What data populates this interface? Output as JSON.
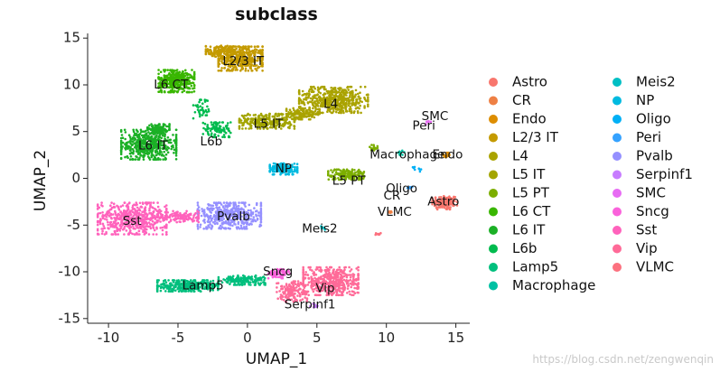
{
  "chart_data": {
    "type": "scatter",
    "title": "subclass",
    "xlabel": "UMAP_1",
    "ylabel": "UMAP_2",
    "xlim": [
      -11.5,
      16
    ],
    "ylim": [
      -15.5,
      15.5
    ],
    "xticks": [
      -10,
      -5,
      0,
      5,
      10,
      15
    ],
    "yticks": [
      -15,
      -10,
      -5,
      0,
      5,
      10,
      15
    ],
    "grid": false,
    "legend_position": "right",
    "series": [
      {
        "name": "Astro",
        "color": "#F8766D",
        "clusters": [
          {
            "x": 14.2,
            "y": -2.6,
            "rx": 0.9,
            "ry": 0.75,
            "n": 150
          }
        ]
      },
      {
        "name": "CR",
        "color": "#EE8044",
        "clusters": [
          {
            "x": 10.3,
            "y": -3.6,
            "rx": 0.15,
            "ry": 0.15,
            "n": 6
          }
        ]
      },
      {
        "name": "Endo",
        "color": "#DD8D00",
        "clusters": [
          {
            "x": 14.3,
            "y": 2.5,
            "rx": 0.3,
            "ry": 0.3,
            "n": 15
          }
        ]
      },
      {
        "name": "L2/3 IT",
        "color": "#C49A00",
        "clusters": [
          {
            "x": -0.5,
            "y": 12.8,
            "rx": 1.6,
            "ry": 1.3,
            "n": 400
          },
          {
            "x": -2.0,
            "y": 13.6,
            "rx": 1.0,
            "ry": 0.6,
            "n": 120
          }
        ]
      },
      {
        "name": "L4",
        "color": "#AAA300",
        "clusters": [
          {
            "x": 6.2,
            "y": 8.4,
            "rx": 2.5,
            "ry": 1.4,
            "n": 520
          },
          {
            "x": 4.0,
            "y": 6.9,
            "rx": 1.2,
            "ry": 0.6,
            "n": 140
          }
        ]
      },
      {
        "name": "L5 IT",
        "color": "#A3A500",
        "clusters": [
          {
            "x": 1.4,
            "y": 6.1,
            "rx": 2.0,
            "ry": 0.8,
            "n": 300
          }
        ]
      },
      {
        "name": "L5 PT",
        "color": "#7CAE00",
        "clusters": [
          {
            "x": 7.1,
            "y": 0.4,
            "rx": 1.3,
            "ry": 0.55,
            "n": 160
          },
          {
            "x": 9.1,
            "y": 3.3,
            "rx": 0.3,
            "ry": 0.3,
            "n": 15
          }
        ]
      },
      {
        "name": "L6 CT",
        "color": "#39B600",
        "clusters": [
          {
            "x": -5.1,
            "y": 10.4,
            "rx": 1.3,
            "ry": 1.2,
            "n": 380
          }
        ]
      },
      {
        "name": "L6 IT",
        "color": "#1BB026",
        "clusters": [
          {
            "x": -7.1,
            "y": 3.6,
            "rx": 2.0,
            "ry": 1.6,
            "n": 520
          },
          {
            "x": -6.4,
            "y": 5.3,
            "rx": 0.8,
            "ry": 0.5,
            "n": 100
          }
        ]
      },
      {
        "name": "L6b",
        "color": "#00BB4E",
        "clusters": [
          {
            "x": -2.2,
            "y": 5.2,
            "rx": 1.0,
            "ry": 0.8,
            "n": 100
          },
          {
            "x": -3.3,
            "y": 7.4,
            "rx": 0.6,
            "ry": 1.0,
            "n": 40
          }
        ]
      },
      {
        "name": "Lamp5",
        "color": "#00BF7D",
        "clusters": [
          {
            "x": -4.3,
            "y": -11.5,
            "rx": 2.2,
            "ry": 0.6,
            "n": 320
          },
          {
            "x": -0.4,
            "y": -10.9,
            "rx": 1.7,
            "ry": 0.5,
            "n": 160
          }
        ]
      },
      {
        "name": "Macrophage",
        "color": "#00C1A3",
        "clusters": [
          {
            "x": 11.0,
            "y": 2.7,
            "rx": 0.3,
            "ry": 0.3,
            "n": 12
          }
        ]
      },
      {
        "name": "Meis2",
        "color": "#00BFC4",
        "clusters": [
          {
            "x": 5.5,
            "y": -5.3,
            "rx": 0.2,
            "ry": 0.2,
            "n": 8
          }
        ]
      },
      {
        "name": "NP",
        "color": "#00BAE0",
        "clusters": [
          {
            "x": 2.6,
            "y": 1.0,
            "rx": 1.0,
            "ry": 0.6,
            "n": 170
          }
        ]
      },
      {
        "name": "Oligo",
        "color": "#00B0F6",
        "clusters": [
          {
            "x": 12.2,
            "y": 1.0,
            "rx": 0.3,
            "ry": 0.3,
            "n": 8
          }
        ]
      },
      {
        "name": "Peri",
        "color": "#35A2FF",
        "clusters": [
          {
            "x": 11.7,
            "y": -1.0,
            "rx": 0.2,
            "ry": 0.2,
            "n": 6
          }
        ]
      },
      {
        "name": "Pvalb",
        "color": "#9590FF",
        "clusters": [
          {
            "x": -1.3,
            "y": -4.0,
            "rx": 2.3,
            "ry": 1.4,
            "n": 440
          }
        ]
      },
      {
        "name": "Serpinf1",
        "color": "#C77CFF",
        "clusters": [
          {
            "x": 4.8,
            "y": -13.7,
            "rx": 0.3,
            "ry": 0.3,
            "n": 12
          }
        ]
      },
      {
        "name": "SMC",
        "color": "#E76BF3",
        "clusters": [
          {
            "x": 13.0,
            "y": 6.0,
            "rx": 0.2,
            "ry": 0.2,
            "n": 6
          }
        ]
      },
      {
        "name": "Sncg",
        "color": "#FA62DB",
        "clusters": [
          {
            "x": 2.3,
            "y": -10.2,
            "rx": 0.8,
            "ry": 0.5,
            "n": 70
          }
        ]
      },
      {
        "name": "Sst",
        "color": "#FF62BC",
        "clusters": [
          {
            "x": -8.3,
            "y": -4.3,
            "rx": 2.5,
            "ry": 1.7,
            "n": 520
          },
          {
            "x": -5.0,
            "y": -4.1,
            "rx": 1.5,
            "ry": 0.6,
            "n": 140
          }
        ]
      },
      {
        "name": "Vip",
        "color": "#FF6A98",
        "clusters": [
          {
            "x": 6.0,
            "y": -11.0,
            "rx": 2.0,
            "ry": 1.5,
            "n": 480
          },
          {
            "x": 3.2,
            "y": -12.1,
            "rx": 1.1,
            "ry": 1.1,
            "n": 150
          }
        ]
      },
      {
        "name": "VLMC",
        "color": "#FC717F",
        "clusters": [
          {
            "x": 9.4,
            "y": -6.0,
            "rx": 0.2,
            "ry": 0.2,
            "n": 8
          }
        ]
      }
    ],
    "cluster_labels": [
      {
        "text": "L2/3 IT",
        "x": -0.3,
        "y": 12.5
      },
      {
        "text": "L6 CT",
        "x": -5.5,
        "y": 10.0
      },
      {
        "text": "L4",
        "x": 6.0,
        "y": 7.9
      },
      {
        "text": "SMC",
        "x": 13.5,
        "y": 6.6
      },
      {
        "text": "L5 IT",
        "x": 1.5,
        "y": 5.8
      },
      {
        "text": "Peri",
        "x": 12.7,
        "y": 5.6
      },
      {
        "text": "L6b",
        "x": -2.6,
        "y": 3.9
      },
      {
        "text": "L6 IT",
        "x": -6.8,
        "y": 3.5
      },
      {
        "text": "Macrophage",
        "x": 11.5,
        "y": 2.5
      },
      {
        "text": "Endo",
        "x": 14.4,
        "y": 2.5
      },
      {
        "text": "NP",
        "x": 2.6,
        "y": 1.0
      },
      {
        "text": "L5 PT",
        "x": 7.3,
        "y": -0.3
      },
      {
        "text": "Oligo",
        "x": 11.1,
        "y": -1.1
      },
      {
        "text": "CR",
        "x": 10.4,
        "y": -1.9
      },
      {
        "text": "Astro",
        "x": 14.1,
        "y": -2.5
      },
      {
        "text": "VLMC",
        "x": 10.6,
        "y": -3.6
      },
      {
        "text": "Sst",
        "x": -8.3,
        "y": -4.6
      },
      {
        "text": "Pvalb",
        "x": -1.0,
        "y": -4.1
      },
      {
        "text": "Meis2",
        "x": 5.2,
        "y": -5.4
      },
      {
        "text": "Sncg",
        "x": 2.2,
        "y": -10.0
      },
      {
        "text": "Lamp5",
        "x": -3.2,
        "y": -11.5
      },
      {
        "text": "Vip",
        "x": 5.6,
        "y": -11.8
      },
      {
        "text": "Serpinf1",
        "x": 4.5,
        "y": -13.5
      }
    ]
  },
  "watermark": "https://blog.csdn.net/zengwenqin"
}
